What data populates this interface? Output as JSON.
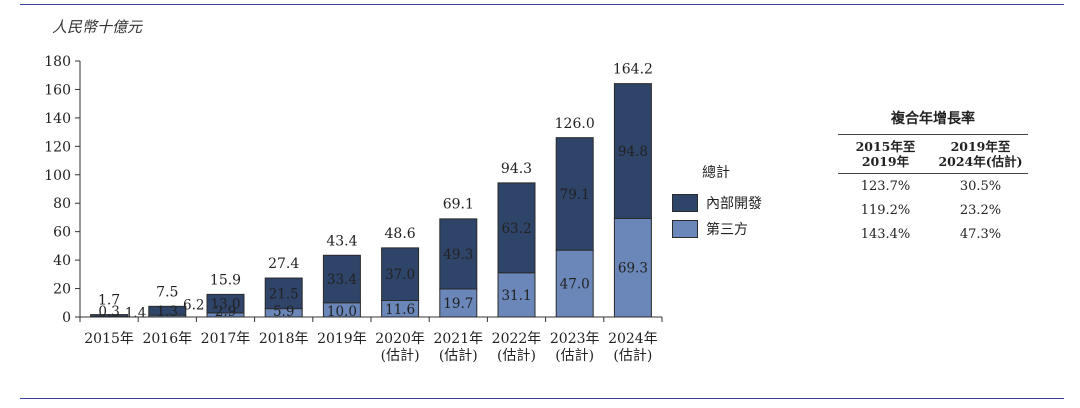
{
  "unit_label": "人民幣十億元",
  "legend": {
    "title": "總計",
    "items": [
      {
        "label": "內部開發",
        "color": "#2e4468"
      },
      {
        "label": "第三方",
        "color": "#6b86b8"
      }
    ]
  },
  "cagr_table": {
    "title": "複合年增長率",
    "columns": [
      [
        "2015年至",
        "2019年"
      ],
      [
        "2019年至",
        "2024年(估計)"
      ]
    ],
    "rows": [
      [
        "123.7%",
        "30.5%"
      ],
      [
        "119.2%",
        "23.2%"
      ],
      [
        "143.4%",
        "47.3%"
      ]
    ]
  },
  "chart_data": {
    "type": "bar",
    "stacked": true,
    "categories": [
      [
        "2015年"
      ],
      [
        "2016年"
      ],
      [
        "2017年"
      ],
      [
        "2018年"
      ],
      [
        "2019年"
      ],
      [
        "2020年",
        "(估計)"
      ],
      [
        "2021年",
        "(估計)"
      ],
      [
        "2022年",
        "(估計)"
      ],
      [
        "2023年",
        "(估計)"
      ],
      [
        "2024年",
        "(估計)"
      ]
    ],
    "series": [
      {
        "name": "第三方",
        "values": [
          0.3,
          1.3,
          2.9,
          5.9,
          10.0,
          11.6,
          19.7,
          31.1,
          47.0,
          69.3
        ],
        "color": "#6b86b8"
      },
      {
        "name": "內部開發",
        "values": [
          1.4,
          6.2,
          13.0,
          21.5,
          33.4,
          37.0,
          49.3,
          63.2,
          79.1,
          94.8
        ],
        "color": "#2e4468"
      }
    ],
    "totals": [
      1.7,
      7.5,
      15.9,
      27.4,
      43.4,
      48.6,
      69.1,
      94.3,
      126.0,
      164.2
    ],
    "ylim": [
      0,
      180
    ],
    "yticks": [
      0,
      20,
      40,
      60,
      80,
      100,
      120,
      140,
      160,
      180
    ],
    "grid": false,
    "legend_position": "right"
  }
}
